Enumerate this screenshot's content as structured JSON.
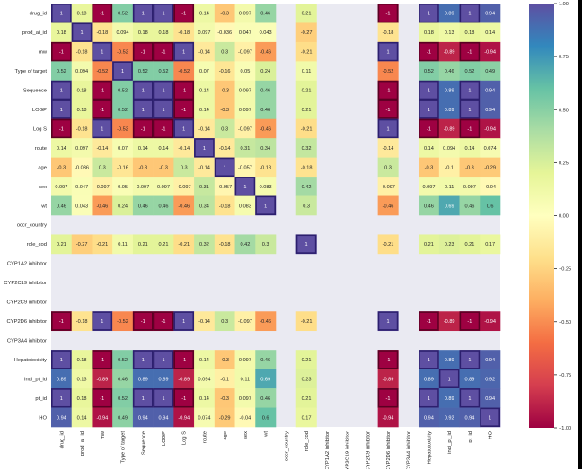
{
  "chart_data": {
    "type": "heatmap",
    "title": "",
    "xlabel": "",
    "ylabel": "",
    "colormap": "Spectral",
    "vmin": -1.0,
    "vmax": 1.0,
    "legend": "right",
    "colorbar_ticks": [
      "1.00",
      "0.75",
      "0.50",
      "0.25",
      "0.00",
      "−0.25",
      "−0.50",
      "−0.75",
      "−1.00"
    ],
    "colorbar_tick_values": [
      1.0,
      0.75,
      0.5,
      0.25,
      0.0,
      -0.25,
      -0.5,
      -0.75,
      -1.0
    ],
    "labels": [
      "drug_id",
      "prod_ai_id",
      "mw",
      "Type of target",
      "Sequence",
      "LOGP",
      "Log S",
      "route",
      "age",
      "sex",
      "wt",
      "occr_country",
      "role_cod",
      "CYP1A2 inhibitor",
      "CYP2C19 inhibitor",
      "CYP2C9 inhibitor",
      "CYP2D6 inhibitor",
      "CYP3A4 inhibitor",
      "Hepatotoxicity",
      "indi_pt_id",
      "pt_id",
      "HO"
    ],
    "matrix": [
      [
        "1",
        "0.18",
        "-1",
        "0.52",
        "1",
        "1",
        "-1",
        "0.14",
        "-0.3",
        "0.097",
        "0.46",
        null,
        "0.21",
        null,
        null,
        null,
        "-1",
        null,
        "1",
        "0.89",
        "1",
        "0.94"
      ],
      [
        "0.18",
        "1",
        "-0.18",
        "0.094",
        "0.18",
        "0.18",
        "-0.18",
        "0.097",
        "-0.036",
        "0.047",
        "0.043",
        null,
        "-0.27",
        null,
        null,
        null,
        "-0.18",
        null,
        "0.18",
        "0.13",
        "0.18",
        "0.14"
      ],
      [
        "-1",
        "-0.18",
        "1",
        "-0.52",
        "-1",
        "-1",
        "1",
        "-0.14",
        "0.3",
        "-0.097",
        "-0.46",
        null,
        "-0.21",
        null,
        null,
        null,
        "1",
        null,
        "-1",
        "-0.89",
        "-1",
        "-0.94"
      ],
      [
        "0.52",
        "0.094",
        "-0.52",
        "1",
        "0.52",
        "0.52",
        "-0.52",
        "0.07",
        "-0.16",
        "0.05",
        "0.24",
        null,
        "0.11",
        null,
        null,
        null,
        "-0.52",
        null,
        "0.52",
        "0.46",
        "0.52",
        "0.49"
      ],
      [
        "1",
        "0.18",
        "-1",
        "0.52",
        "1",
        "1",
        "-1",
        "0.14",
        "-0.3",
        "0.097",
        "0.46",
        null,
        "0.21",
        null,
        null,
        null,
        "-1",
        null,
        "1",
        "0.89",
        "1",
        "0.94"
      ],
      [
        "1",
        "0.18",
        "-1",
        "0.52",
        "1",
        "1",
        "-1",
        "0.14",
        "-0.3",
        "0.097",
        "0.46",
        null,
        "0.21",
        null,
        null,
        null,
        "-1",
        null,
        "1",
        "0.89",
        "1",
        "0.94"
      ],
      [
        "-1",
        "-0.18",
        "1",
        "-0.52",
        "-1",
        "-1",
        "1",
        "-0.14",
        "0.3",
        "-0.097",
        "-0.46",
        null,
        "-0.21",
        null,
        null,
        null,
        "1",
        null,
        "-1",
        "-0.89",
        "-1",
        "-0.94"
      ],
      [
        "0.14",
        "0.097",
        "-0.14",
        "0.07",
        "0.14",
        "0.14",
        "-0.14",
        "1",
        "-0.14",
        "0.31",
        "0.34",
        null,
        "0.32",
        null,
        null,
        null,
        "-0.14",
        null,
        "0.14",
        "0.094",
        "0.14",
        "0.074"
      ],
      [
        "-0.3",
        "-0.036",
        "0.3",
        "-0.16",
        "-0.3",
        "-0.3",
        "0.3",
        "-0.14",
        "1",
        "-0.057",
        "-0.18",
        null,
        "-0.18",
        null,
        null,
        null,
        "0.3",
        null,
        "-0.3",
        "-0.1",
        "-0.3",
        "-0.29"
      ],
      [
        "0.097",
        "0.047",
        "-0.097",
        "0.05",
        "0.097",
        "0.097",
        "-0.097",
        "0.31",
        "-0.057",
        "1",
        "0.083",
        null,
        "0.42",
        null,
        null,
        null,
        "-0.097",
        null,
        "0.097",
        "0.11",
        "0.097",
        "-0.04"
      ],
      [
        "0.46",
        "0.043",
        "-0.46",
        "0.24",
        "0.46",
        "0.46",
        "-0.46",
        "0.34",
        "-0.18",
        "0.083",
        "1",
        null,
        "0.3",
        null,
        null,
        null,
        "-0.46",
        null,
        "0.46",
        "0.69",
        "0.46",
        "0.6"
      ],
      [
        null,
        null,
        null,
        null,
        null,
        null,
        null,
        null,
        null,
        null,
        null,
        null,
        null,
        null,
        null,
        null,
        null,
        null,
        null,
        null,
        null,
        null
      ],
      [
        "0.21",
        "-0.27",
        "-0.21",
        "0.11",
        "0.21",
        "0.21",
        "-0.21",
        "0.32",
        "-0.18",
        "0.42",
        "0.3",
        null,
        "1",
        null,
        null,
        null,
        "-0.21",
        null,
        "0.21",
        "0.23",
        "0.21",
        "0.17"
      ],
      [
        null,
        null,
        null,
        null,
        null,
        null,
        null,
        null,
        null,
        null,
        null,
        null,
        null,
        null,
        null,
        null,
        null,
        null,
        null,
        null,
        null,
        null
      ],
      [
        null,
        null,
        null,
        null,
        null,
        null,
        null,
        null,
        null,
        null,
        null,
        null,
        null,
        null,
        null,
        null,
        null,
        null,
        null,
        null,
        null,
        null
      ],
      [
        null,
        null,
        null,
        null,
        null,
        null,
        null,
        null,
        null,
        null,
        null,
        null,
        null,
        null,
        null,
        null,
        null,
        null,
        null,
        null,
        null,
        null
      ],
      [
        "-1",
        "-0.18",
        "1",
        "-0.52",
        "-1",
        "-1",
        "1",
        "-0.14",
        "0.3",
        "-0.097",
        "-0.46",
        null,
        "-0.21",
        null,
        null,
        null,
        "1",
        null,
        "-1",
        "-0.89",
        "-1",
        "-0.94"
      ],
      [
        null,
        null,
        null,
        null,
        null,
        null,
        null,
        null,
        null,
        null,
        null,
        null,
        null,
        null,
        null,
        null,
        null,
        null,
        null,
        null,
        null,
        null
      ],
      [
        "1",
        "0.18",
        "-1",
        "0.52",
        "1",
        "1",
        "-1",
        "0.14",
        "-0.3",
        "0.097",
        "0.46",
        null,
        "0.21",
        null,
        null,
        null,
        "-1",
        null,
        "1",
        "0.89",
        "1",
        "0.94"
      ],
      [
        "0.89",
        "0.13",
        "-0.89",
        "0.46",
        "0.89",
        "0.89",
        "-0.89",
        "0.094",
        "-0.1",
        "0.11",
        "0.69",
        null,
        "0.23",
        null,
        null,
        null,
        "-0.89",
        null,
        "0.89",
        "1",
        "0.89",
        "0.92"
      ],
      [
        "1",
        "0.18",
        "-1",
        "0.52",
        "1",
        "1",
        "-1",
        "0.14",
        "-0.3",
        "0.097",
        "0.46",
        null,
        "0.21",
        null,
        null,
        null,
        "-1",
        null,
        "1",
        "0.89",
        "1",
        "0.94"
      ],
      [
        "0.94",
        "0.14",
        "-0.94",
        "0.49",
        "0.94",
        "0.94",
        "-0.94",
        "0.074",
        "-0.29",
        "-0.04",
        "0.6",
        null,
        "0.17",
        null,
        null,
        null,
        "-0.94",
        null,
        "0.94",
        "0.92",
        "0.94",
        "1"
      ]
    ]
  },
  "colors": {
    "nan_background": "#eaeaf2",
    "text_dark": "#262626",
    "text_light": "#ffffff",
    "spectral_stops": [
      "#9e0142",
      "#d53e4f",
      "#f46d43",
      "#fdae61",
      "#fee08b",
      "#ffffbf",
      "#e6f598",
      "#abdda4",
      "#66c2a5",
      "#3288bd",
      "#5e4fa2"
    ]
  }
}
